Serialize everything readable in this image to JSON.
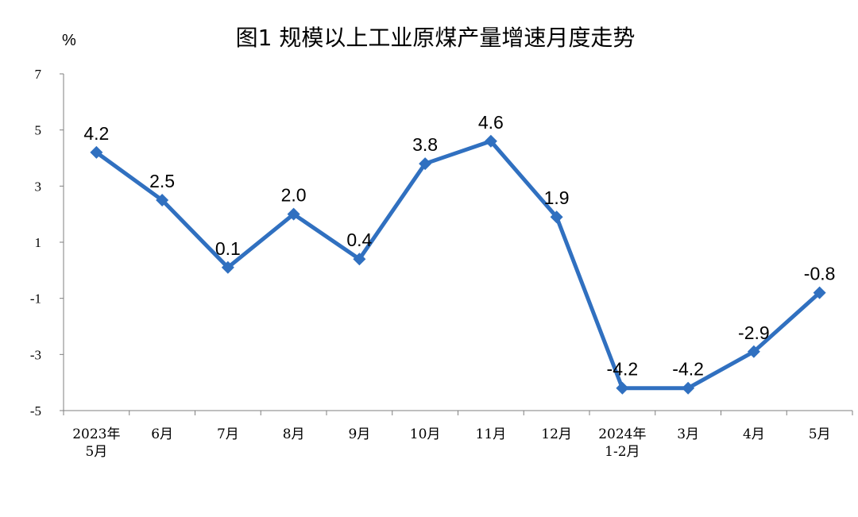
{
  "chart_data": {
    "type": "line",
    "title": "图1  规模以上工业原煤产量增速月度走势",
    "unit_label": "%",
    "xlabel": "",
    "ylabel": "",
    "ylim": [
      -5,
      7
    ],
    "yticks": [
      "7",
      "5",
      "3",
      "1",
      "-1",
      "-3",
      "-5"
    ],
    "ytick_values": [
      7,
      5,
      3,
      1,
      -1,
      -3,
      -5
    ],
    "categories": [
      [
        "2023年",
        "5月"
      ],
      [
        "6月"
      ],
      [
        "7月"
      ],
      [
        "8月"
      ],
      [
        "9月"
      ],
      [
        "10月"
      ],
      [
        "11月"
      ],
      [
        "12月"
      ],
      [
        "2024年",
        "1-2月"
      ],
      [
        "3月"
      ],
      [
        "4月"
      ],
      [
        "5月"
      ]
    ],
    "values": [
      4.2,
      2.5,
      0.1,
      2.0,
      0.4,
      3.8,
      4.6,
      1.9,
      -4.2,
      -4.2,
      -2.9,
      -0.8
    ],
    "value_labels": [
      "4.2",
      "2.5",
      "0.1",
      "2.0",
      "0.4",
      "3.8",
      "4.6",
      "1.9",
      "-4.2",
      "-4.2",
      "-2.9",
      "-0.8"
    ],
    "grid": false,
    "legend": "none",
    "line_color": "#3070C0",
    "marker": "diamond"
  }
}
